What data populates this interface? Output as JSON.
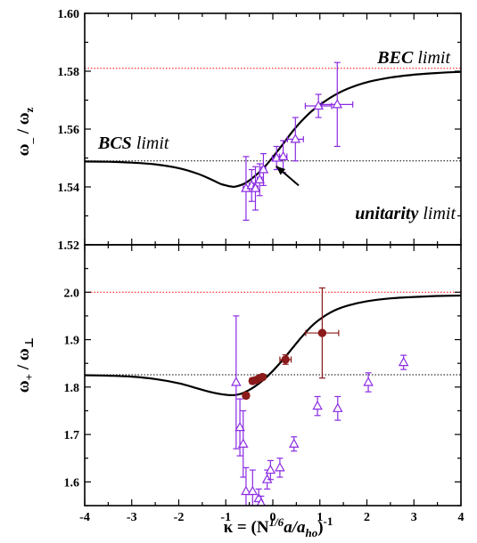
{
  "chart_data": [
    {
      "type": "scatter",
      "panel": "top",
      "ylabel": "ω_ / ω_z",
      "xlim": [
        -4,
        4
      ],
      "ylim": [
        1.52,
        1.6
      ],
      "yticks": [
        "1.52",
        "1.54",
        "1.56",
        "1.58",
        "1.60"
      ],
      "grid": false,
      "reference_lines": [
        {
          "y": 1.581,
          "color": "#ff0000",
          "style": "dotted"
        },
        {
          "y": 1.549,
          "color": "#000000",
          "style": "dotted"
        }
      ],
      "annotations": [
        {
          "bold": "BEC",
          "rest": " limit"
        },
        {
          "bold": "BCS",
          "rest": " limit"
        },
        {
          "bold": "unitarity",
          "rest": " limit"
        }
      ],
      "arrow": {
        "from": [
          0.55,
          1.5405
        ],
        "to": [
          0.07,
          1.5472
        ]
      },
      "theory_curve": {
        "color": "#000000",
        "x": [
          -4,
          -3.5,
          -3,
          -2.5,
          -2,
          -1.6,
          -1.3,
          -1.1,
          -0.9,
          -0.8,
          -0.6,
          -0.4,
          -0.2,
          0,
          0.2,
          0.4,
          0.6,
          0.8,
          1.0,
          1.3,
          1.6,
          2.0,
          2.5,
          3.0,
          3.5,
          4.0
        ],
        "y": [
          1.5488,
          1.5487,
          1.5484,
          1.5478,
          1.5465,
          1.5446,
          1.5425,
          1.541,
          1.5402,
          1.5401,
          1.5412,
          1.5435,
          1.5465,
          1.5503,
          1.5545,
          1.5588,
          1.5626,
          1.5658,
          1.5684,
          1.5716,
          1.574,
          1.5762,
          1.5778,
          1.5788,
          1.5794,
          1.5798
        ]
      },
      "series": [
        {
          "marker": "open-triangle",
          "color": "#8a2be2",
          "points": [
            {
              "x": -0.57,
              "y": 1.5395,
              "yerr": 0.011,
              "xerr": 0.06
            },
            {
              "x": -0.45,
              "y": 1.5405,
              "yerr": 0.0055,
              "xerr": 0.05
            },
            {
              "x": -0.37,
              "y": 1.5395,
              "yerr": 0.0075,
              "xerr": 0.05
            },
            {
              "x": -0.28,
              "y": 1.5425,
              "yerr": 0.0055,
              "xerr": 0.05
            },
            {
              "x": -0.2,
              "y": 1.546,
              "yerr": 0.0055,
              "xerr": 0.05
            },
            {
              "x": 0.08,
              "y": 1.55,
              "yerr": 0.004,
              "xerr": 0.09
            },
            {
              "x": 0.22,
              "y": 1.5505,
              "yerr": 0.0055,
              "xerr": 0.08
            },
            {
              "x": 0.48,
              "y": 1.5565,
              "yerr": 0.0075,
              "xerr": 0.17
            },
            {
              "x": 0.97,
              "y": 1.568,
              "yerr": 0.004,
              "xerr": 0.28
            },
            {
              "x": 1.37,
              "y": 1.5685,
              "yerr": 0.0145,
              "xerr": 0.33
            }
          ]
        }
      ]
    },
    {
      "type": "scatter",
      "panel": "bottom",
      "xlabel": "κ = (N^1/6 a/a_ho)^-1",
      "ylabel": "ω+ / ω⊥",
      "xlim": [
        -4,
        4
      ],
      "ylim": [
        1.55,
        2.1
      ],
      "xticks": [
        "-4",
        "-3",
        "-2",
        "-1",
        "0",
        "1",
        "2",
        "3",
        "4"
      ],
      "yticks": [
        "1.6",
        "1.7",
        "1.8",
        "1.9",
        "2.0"
      ],
      "grid": false,
      "reference_lines": [
        {
          "y": 2.0,
          "color": "#ff0000",
          "style": "dotted"
        },
        {
          "y": 1.826,
          "color": "#000000",
          "style": "dotted"
        }
      ],
      "theory_curve": {
        "color": "#000000",
        "x": [
          -4,
          -3.5,
          -3,
          -2.5,
          -2,
          -1.6,
          -1.3,
          -1.1,
          -0.9,
          -0.75,
          -0.6,
          -0.4,
          -0.2,
          0,
          0.2,
          0.4,
          0.6,
          0.8,
          1.0,
          1.3,
          1.6,
          2.0,
          2.5,
          3.0,
          3.5,
          4.0
        ],
        "y": [
          1.825,
          1.824,
          1.822,
          1.817,
          1.808,
          1.797,
          1.789,
          1.785,
          1.783,
          1.784,
          1.789,
          1.8,
          1.815,
          1.834,
          1.856,
          1.88,
          1.904,
          1.926,
          1.943,
          1.961,
          1.972,
          1.981,
          1.987,
          1.99,
          1.992,
          1.993
        ]
      },
      "series": [
        {
          "marker": "filled-circle",
          "color": "#8b1a1a",
          "points": [
            {
              "x": -0.57,
              "y": 1.782,
              "yerr": 0.006,
              "xerr": 0.06
            },
            {
              "x": -0.43,
              "y": 1.813,
              "yerr": 0.006,
              "xerr": 0.06
            },
            {
              "x": -0.35,
              "y": 1.815,
              "yerr": 0.006,
              "xerr": 0.06
            },
            {
              "x": -0.28,
              "y": 1.819,
              "yerr": 0.005,
              "xerr": 0.06
            },
            {
              "x": -0.22,
              "y": 1.821,
              "yerr": 0.005,
              "xerr": 0.06
            },
            {
              "x": 0.27,
              "y": 1.858,
              "yerr": 0.01,
              "xerr": 0.12
            },
            {
              "x": 1.05,
              "y": 1.914,
              "yerr": 0.095,
              "xerr": 0.35
            }
          ]
        },
        {
          "marker": "open-triangle",
          "color": "#8a2be2",
          "points": [
            {
              "x": -0.78,
              "y": 1.81,
              "yerr": 0.14,
              "xerr": 0
            },
            {
              "x": -0.7,
              "y": 1.715,
              "yerr": 0.06,
              "xerr": 0
            },
            {
              "x": -0.63,
              "y": 1.68,
              "yerr": 0.07,
              "xerr": 0
            },
            {
              "x": -0.57,
              "y": 1.58,
              "yerr": 0.05,
              "xerr": 0
            },
            {
              "x": -0.43,
              "y": 1.58,
              "yerr": 0.045,
              "xerr": 0
            },
            {
              "x": -0.3,
              "y": 1.565,
              "yerr": 0.02,
              "xerr": 0
            },
            {
              "x": -0.25,
              "y": 1.555,
              "yerr": 0.015,
              "xerr": 0
            },
            {
              "x": -0.12,
              "y": 1.605,
              "yerr": 0.02,
              "xerr": 0
            },
            {
              "x": -0.05,
              "y": 1.625,
              "yerr": 0.02,
              "xerr": 0
            },
            {
              "x": 0.15,
              "y": 1.63,
              "yerr": 0.02,
              "xerr": 0
            },
            {
              "x": 0.45,
              "y": 1.68,
              "yerr": 0.015,
              "xerr": 0
            },
            {
              "x": 0.95,
              "y": 1.76,
              "yerr": 0.02,
              "xerr": 0
            },
            {
              "x": 1.38,
              "y": 1.755,
              "yerr": 0.025,
              "xerr": 0
            },
            {
              "x": 2.03,
              "y": 1.81,
              "yerr": 0.02,
              "xerr": 0
            },
            {
              "x": 2.78,
              "y": 1.852,
              "yerr": 0.015,
              "xerr": 0
            }
          ]
        }
      ]
    }
  ]
}
